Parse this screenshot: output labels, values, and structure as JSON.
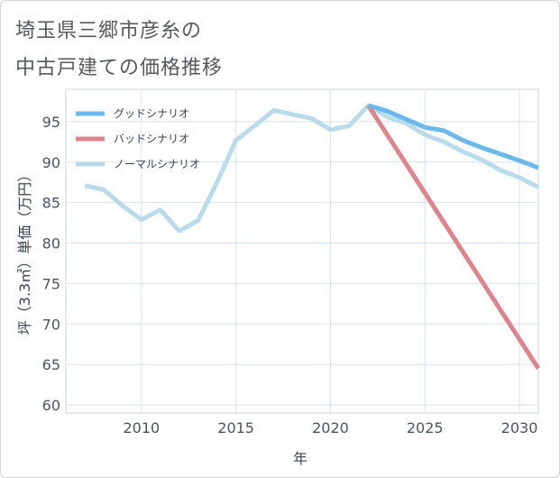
{
  "chart_data": {
    "type": "line",
    "title": [
      "埼玉県三郷市彦糸の",
      "中古戸建ての価格推移"
    ],
    "xlabel": "年",
    "ylabel": "坪（3.3㎡）単価（万円）",
    "xlim": [
      2006,
      2031
    ],
    "ylim": [
      59,
      99
    ],
    "xticks": [
      2010,
      2015,
      2020,
      2025,
      2030
    ],
    "yticks": [
      60,
      65,
      70,
      75,
      80,
      85,
      90,
      95
    ],
    "grid": true,
    "legend_position": "top-left",
    "series": [
      {
        "name": "グッドシナリオ",
        "color": "#6bb8ec",
        "x": [
          2022,
          2023,
          2024,
          2025,
          2026,
          2027,
          2028,
          2029,
          2030,
          2031
        ],
        "values": [
          97.0,
          96.3,
          95.3,
          94.3,
          93.9,
          92.7,
          91.8,
          91.0,
          90.2,
          89.3
        ]
      },
      {
        "name": "バッドシナリオ",
        "color": "#e0848c",
        "x": [
          2022,
          2031
        ],
        "values": [
          97.0,
          64.5
        ]
      },
      {
        "name": "ノーマルシナリオ",
        "color": "#badbea",
        "x": [
          2007,
          2008,
          2009,
          2010,
          2011,
          2012,
          2013,
          2014,
          2015,
          2016,
          2017,
          2018,
          2019,
          2020,
          2021,
          2022,
          2023,
          2024,
          2025,
          2026,
          2027,
          2028,
          2029,
          2030,
          2031
        ],
        "values": [
          87.1,
          86.6,
          84.6,
          82.9,
          84.1,
          81.5,
          82.8,
          87.5,
          92.7,
          94.5,
          96.4,
          95.9,
          95.4,
          94.0,
          94.5,
          97.0,
          95.6,
          94.8,
          93.4,
          92.5,
          91.3,
          90.3,
          89.0,
          88.1,
          86.9
        ]
      }
    ]
  }
}
